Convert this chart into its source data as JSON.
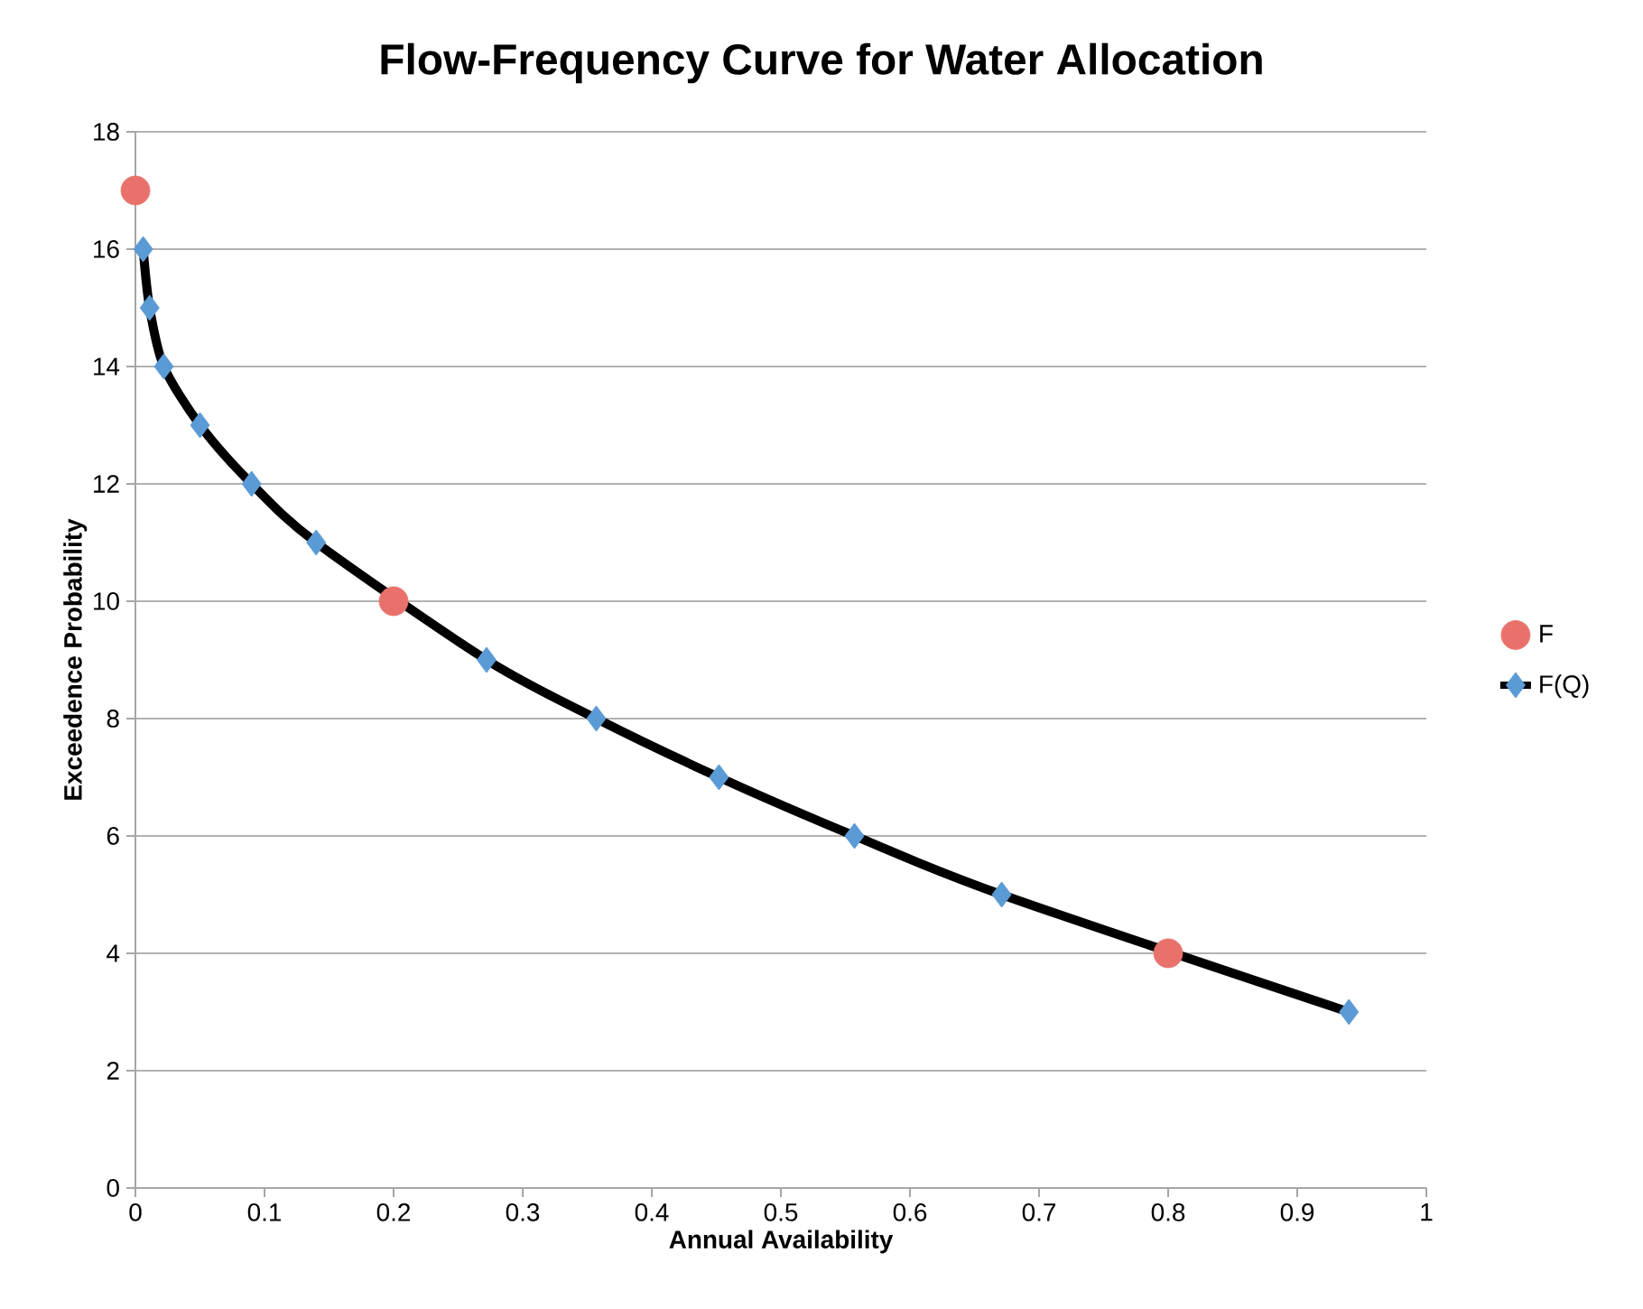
{
  "chart_data": {
    "type": "line",
    "title": "Flow-Frequency Curve for Water Allocation",
    "xlabel": "Annual Availability",
    "ylabel": "Exceedence Probability",
    "series": [
      {
        "name": "F",
        "type": "scatter",
        "marker": "circle",
        "color": "#e8726b",
        "x": [
          0,
          0.2,
          0.8
        ],
        "values": [
          17,
          10,
          4
        ]
      },
      {
        "name": "F(Q)",
        "marker": "diamond",
        "color": "#000000",
        "x": [
          0.006,
          0.011,
          0.022,
          0.05,
          0.09,
          0.14,
          0.272,
          0.357,
          0.452,
          0.557,
          0.671,
          0.94
        ],
        "values": [
          16,
          15,
          14,
          13,
          12,
          11,
          9,
          8,
          7,
          6,
          5,
          3
        ]
      }
    ],
    "xlim": [
      0,
      1
    ],
    "xticks": [
      0,
      0.1,
      0.2,
      0.3,
      0.4,
      0.5,
      0.6,
      0.7,
      0.8,
      0.9,
      1
    ],
    "ylim": [
      0,
      18
    ],
    "yticks": [
      0,
      2,
      4,
      6,
      8,
      10,
      12,
      14,
      16,
      18
    ],
    "grid": "y",
    "legend": "right"
  }
}
